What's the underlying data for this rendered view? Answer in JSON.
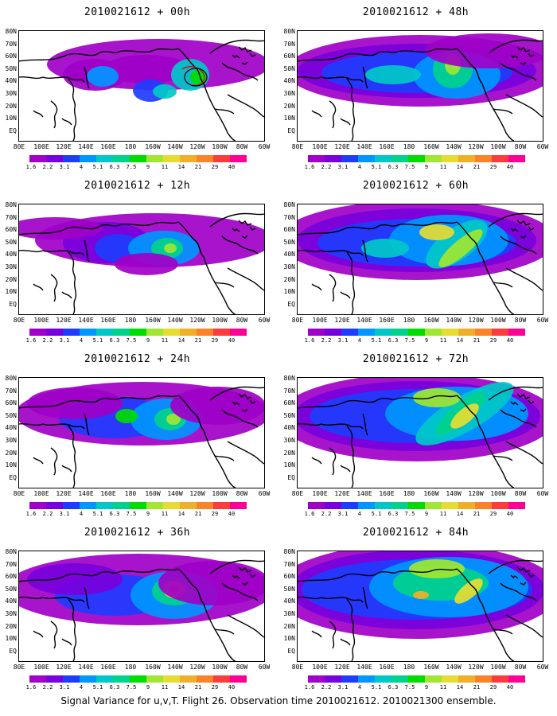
{
  "figure": {
    "caption": "Signal Variance for u,v,T. Flight 26. Observation time 2010021612. 2010021300 ensemble."
  },
  "axes": {
    "lat_labels": [
      "80N",
      "70N",
      "60N",
      "50N",
      "40N",
      "30N",
      "20N",
      "10N",
      "EQ"
    ],
    "lon_labels": [
      "80E",
      "100E",
      "120E",
      "140E",
      "160E",
      "180",
      "160W",
      "140W",
      "120W",
      "100W",
      "80W",
      "60W"
    ]
  },
  "colorbar": {
    "ticks": [
      "1.6",
      "2.2",
      "3.1",
      "4",
      "5.1",
      "6.3",
      "7.5",
      "9",
      "11",
      "14",
      "21",
      "29",
      "40"
    ],
    "colors": [
      "#a000c8",
      "#7800dc",
      "#1e3cff",
      "#0096ff",
      "#00c8c8",
      "#00d28c",
      "#00dc00",
      "#a0e632",
      "#e6dc32",
      "#f0af28",
      "#fa8228",
      "#fa3c3c",
      "#ff0096"
    ]
  },
  "panels": [
    {
      "title": "2010021612 + 00h",
      "lead_hours": 0,
      "column": "left",
      "row": 1
    },
    {
      "title": "2010021612 + 48h",
      "lead_hours": 48,
      "column": "right",
      "row": 1
    },
    {
      "title": "2010021612 + 12h",
      "lead_hours": 12,
      "column": "left",
      "row": 2
    },
    {
      "title": "2010021612 + 60h",
      "lead_hours": 60,
      "column": "right",
      "row": 2
    },
    {
      "title": "2010021612 + 24h",
      "lead_hours": 24,
      "column": "left",
      "row": 3
    },
    {
      "title": "2010021612 + 72h",
      "lead_hours": 72,
      "column": "right",
      "row": 3
    },
    {
      "title": "2010021612 + 36h",
      "lead_hours": 36,
      "column": "left",
      "row": 4
    },
    {
      "title": "2010021612 + 84h",
      "lead_hours": 84,
      "column": "right",
      "row": 4
    }
  ]
}
